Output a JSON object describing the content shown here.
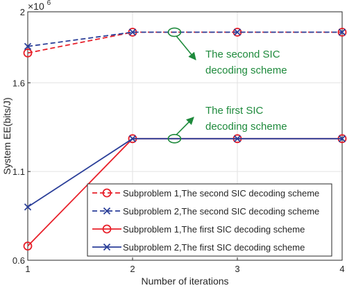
{
  "chart_data": {
    "type": "line",
    "xlabel": "Number of iterations",
    "ylabel": "System EE(bits/J)",
    "y_multiplier_label": "×10",
    "y_multiplier_exp": "6",
    "xlim": [
      1,
      4
    ],
    "ylim": [
      0.6,
      2.0
    ],
    "x": [
      1,
      2,
      3,
      4
    ],
    "x_ticks": [
      "1",
      "2",
      "3",
      "4"
    ],
    "y_ticks": [
      {
        "value": 0.6,
        "label": "0.6"
      },
      {
        "value": 1.1,
        "label": "1.1"
      },
      {
        "value": 1.6,
        "label": "1.6"
      },
      {
        "value": 2.0,
        "label": "2"
      }
    ],
    "grid": true,
    "legend_position": "bottom-right",
    "series": [
      {
        "name": "Subproblem 1,The second SIC decoding scheme",
        "color": "#e8202a",
        "line": "dashed",
        "marker": "circle",
        "values": [
          1.768,
          1.885,
          1.885,
          1.885
        ]
      },
      {
        "name": "Subproblem 2,The second SIC decoding scheme",
        "color": "#2b3f99",
        "line": "dashed",
        "marker": "x",
        "values": [
          1.805,
          1.885,
          1.885,
          1.885
        ]
      },
      {
        "name": "Subproblem 1,The first SIC decoding scheme",
        "color": "#e8202a",
        "line": "solid",
        "marker": "circle",
        "values": [
          0.68,
          1.285,
          1.285,
          1.285
        ]
      },
      {
        "name": "Subproblem 2,The first SIC decoding scheme",
        "color": "#2b3f99",
        "line": "solid",
        "marker": "x",
        "values": [
          0.9,
          1.285,
          1.285,
          1.285
        ]
      }
    ],
    "annotations": [
      {
        "lines": [
          "The second SIC",
          "decoding scheme"
        ],
        "color": "#1e8a3c",
        "target": {
          "x": 2.4,
          "y": 1.885
        }
      },
      {
        "lines": [
          "The first SIC",
          "decoding scheme"
        ],
        "color": "#1e8a3c",
        "target": {
          "x": 2.4,
          "y": 1.285
        }
      }
    ]
  }
}
